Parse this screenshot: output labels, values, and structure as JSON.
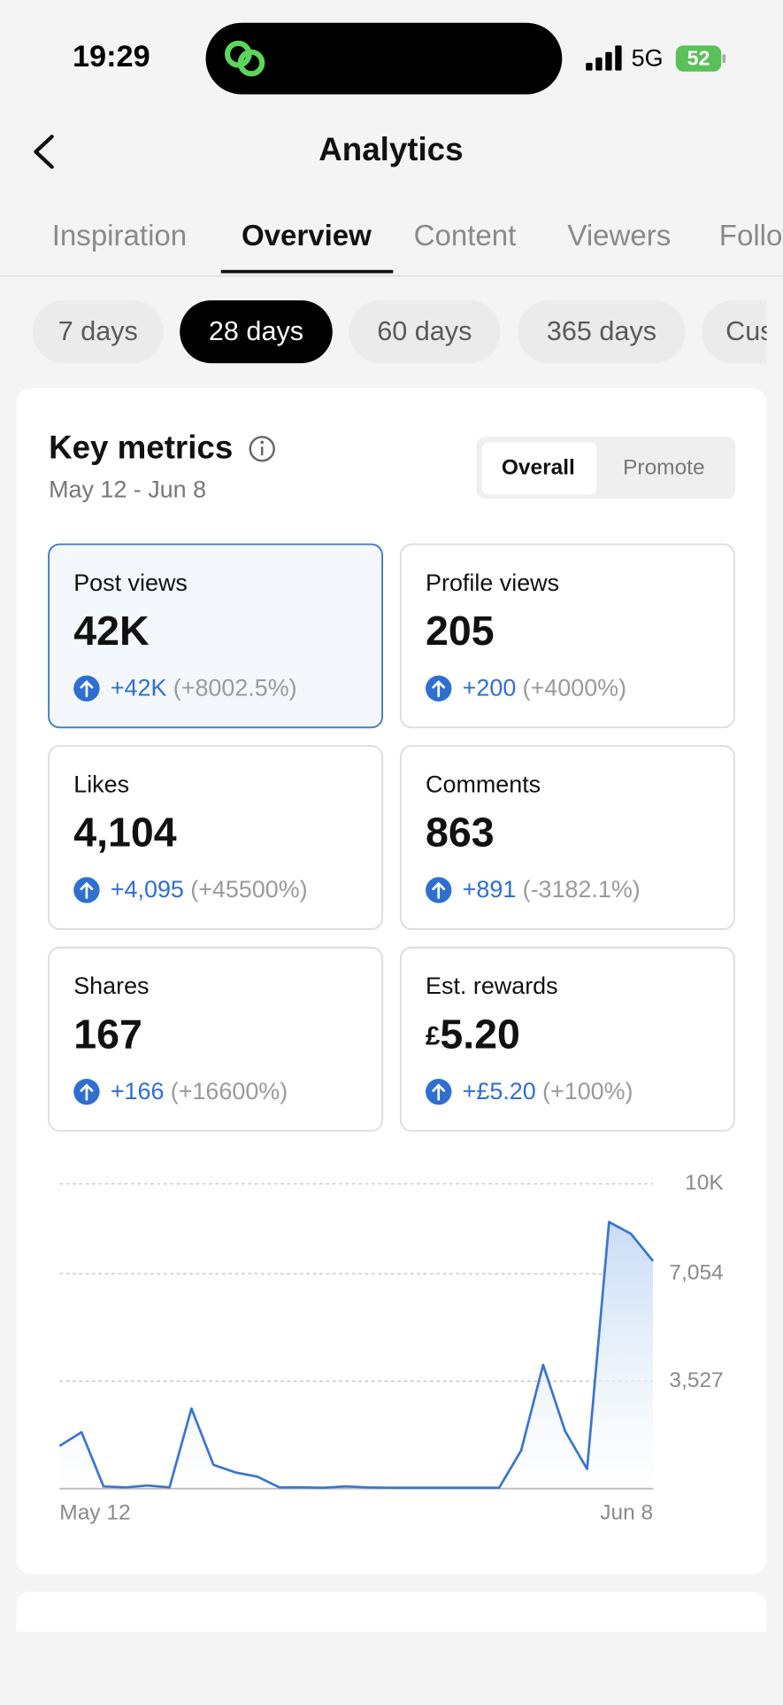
{
  "status_bar": {
    "time": "19:29",
    "network": "5G",
    "battery": "52"
  },
  "header": {
    "title": "Analytics"
  },
  "tabs": [
    "Inspiration",
    "Overview",
    "Content",
    "Viewers",
    "Followers"
  ],
  "filters": [
    "7 days",
    "28 days",
    "60 days",
    "365 days",
    "Custom"
  ],
  "key_metrics": {
    "title": "Key metrics",
    "date_range": "May 12 - Jun 8",
    "toggle": [
      "Overall",
      "Promote"
    ],
    "metrics": [
      {
        "label": "Post views",
        "value": "42K",
        "change": "+42K",
        "percent": "(+8002.5%)"
      },
      {
        "label": "Profile views",
        "value": "205",
        "change": "+200",
        "percent": "(+4000%)"
      },
      {
        "label": "Likes",
        "value": "4,104",
        "change": "+4,095",
        "percent": "(+45500%)"
      },
      {
        "label": "Comments",
        "value": "863",
        "change": "+891",
        "percent": "(-3182.1%)"
      },
      {
        "label": "Shares",
        "value": "167",
        "change": "+166",
        "percent": "(+16600%)"
      },
      {
        "label": "Est. rewards",
        "currency": "£",
        "value": "5.20",
        "change": "+£5.20",
        "percent": "(+100%)"
      }
    ]
  },
  "chart_data": {
    "type": "line",
    "color": "#3a74cf",
    "categories": [
      "May 12",
      null,
      null,
      null,
      null,
      null,
      null,
      null,
      null,
      null,
      null,
      null,
      null,
      null,
      null,
      null,
      null,
      null,
      null,
      null,
      null,
      null,
      null,
      null,
      null,
      null,
      null,
      "Jun 8"
    ],
    "values": [
      1400,
      1850,
      70,
      40,
      100,
      40,
      2630,
      780,
      530,
      390,
      40,
      40,
      30,
      70,
      40,
      30,
      30,
      30,
      30,
      30,
      30,
      1250,
      4060,
      1890,
      640,
      8750,
      8360,
      7470
    ],
    "ylim": [
      0,
      10000
    ],
    "yticks": [
      {
        "value": 3527,
        "label": "3,527"
      },
      {
        "value": 7054,
        "label": "7,054"
      },
      {
        "value": 10000,
        "label": "10K"
      }
    ],
    "grid": true
  }
}
